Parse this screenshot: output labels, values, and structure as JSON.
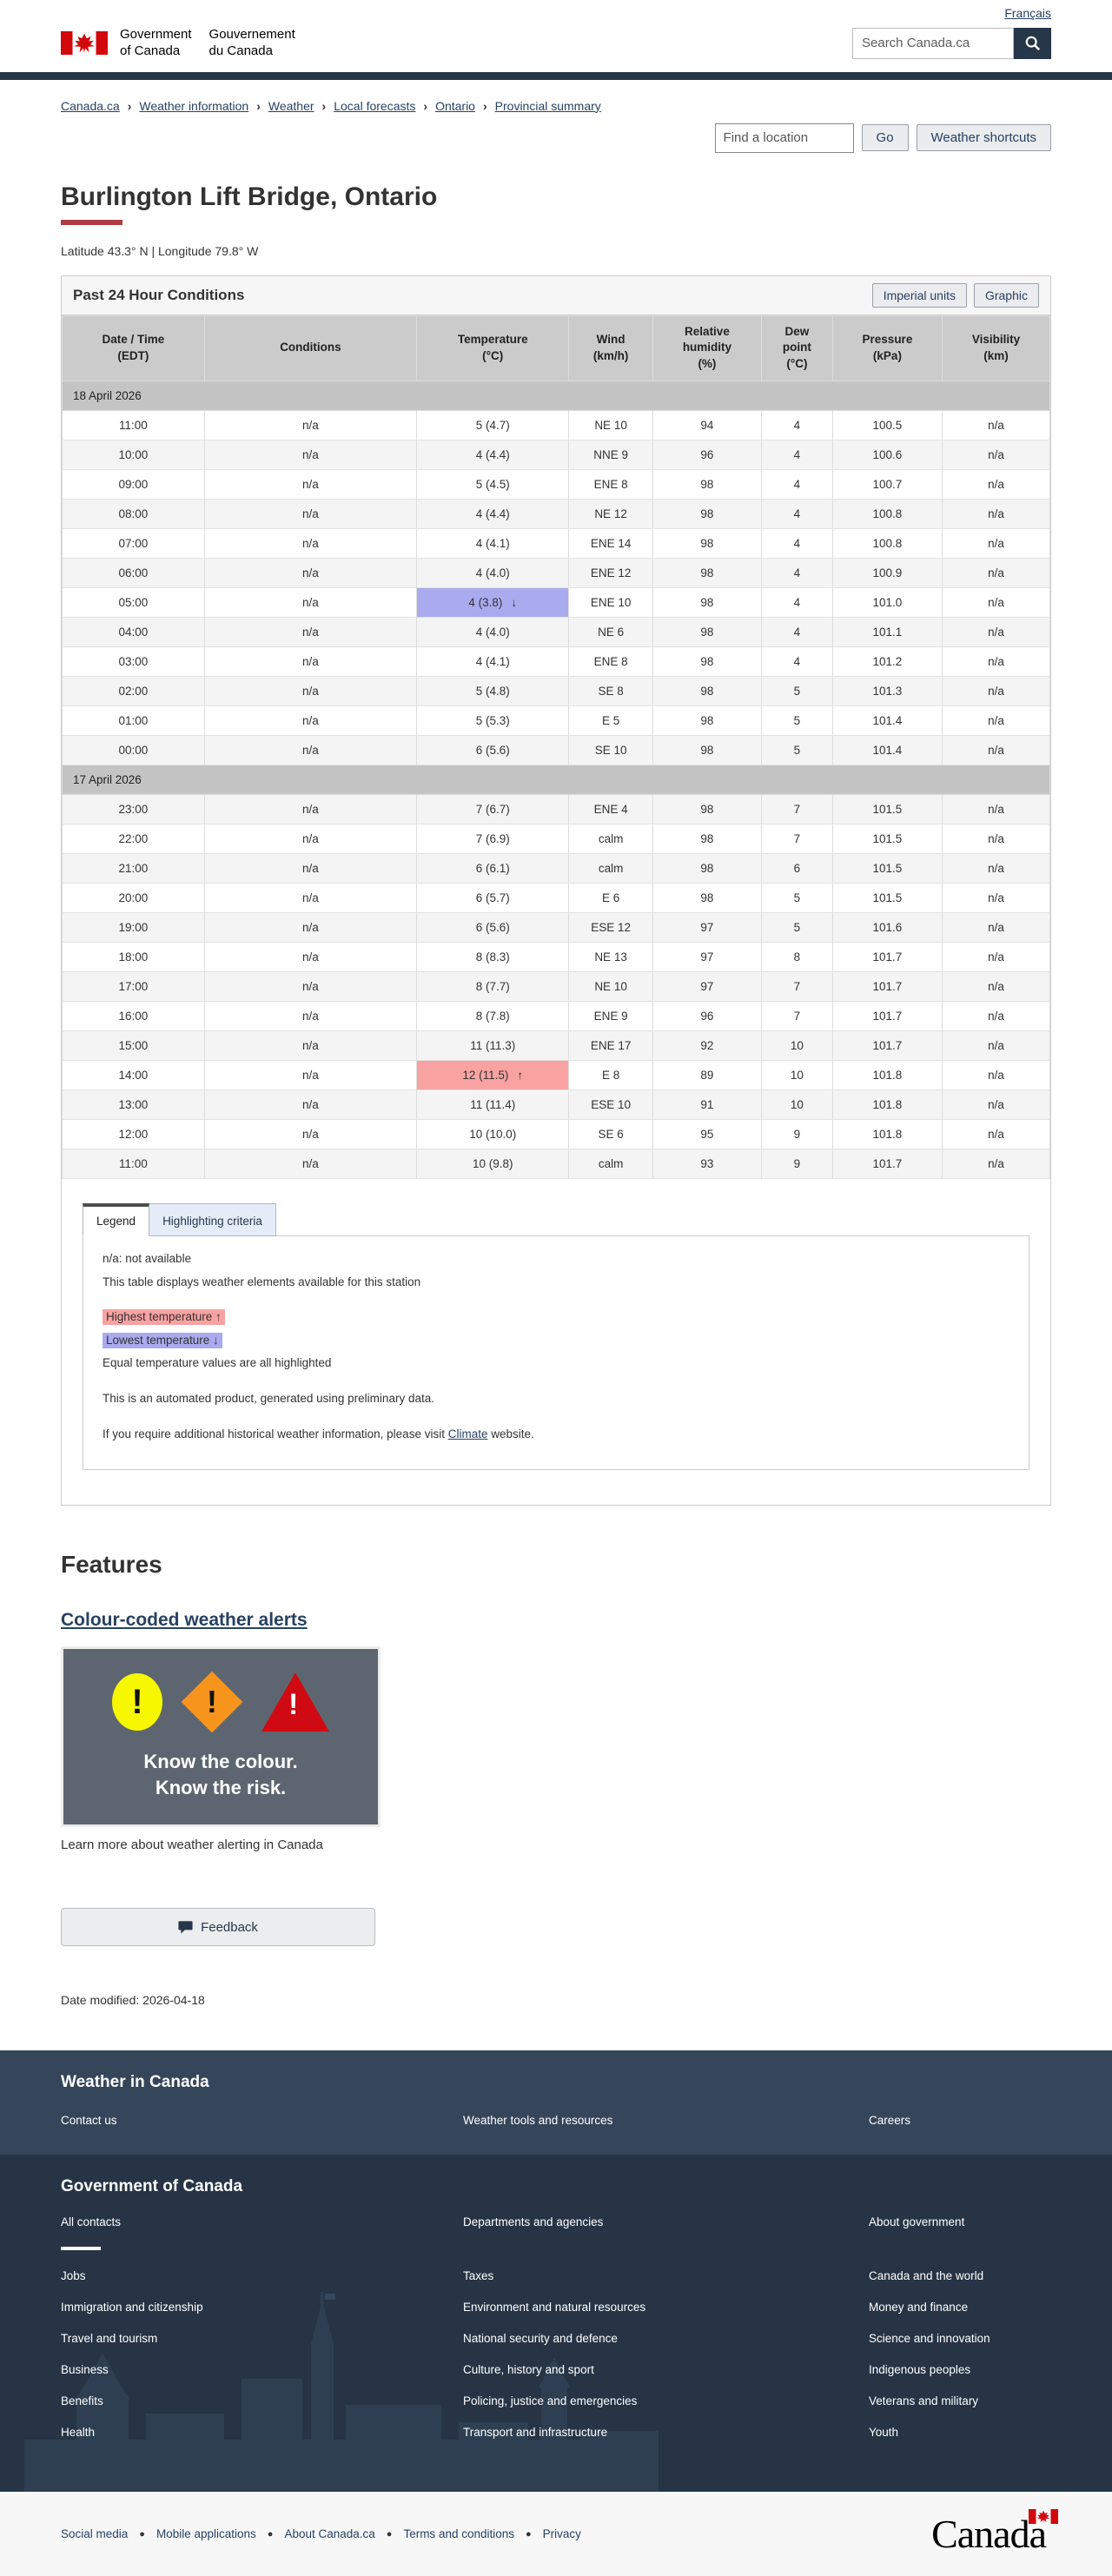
{
  "colors": {
    "navy": "#26374a",
    "link_blue": "#284162",
    "accent_red": "#af3c43",
    "highlight_highest": "#f8a2a2",
    "highlight_lowest": "#aaaaee",
    "footer_band1": "#35455a",
    "footer_band2": "#263445",
    "flag_red": "#d3080c"
  },
  "header": {
    "language_toggle": "Français",
    "signature_en_line1": "Government",
    "signature_en_line2": "of Canada",
    "signature_fr_line1": "Gouvernement",
    "signature_fr_line2": "du Canada",
    "search_placeholder": "Search Canada.ca"
  },
  "breadcrumb": [
    "Canada.ca",
    "Weather information",
    "Weather",
    "Local forecasts",
    "Ontario",
    "Provincial summary"
  ],
  "location_bar": {
    "find_placeholder": "Find a location",
    "go_label": "Go",
    "shortcuts_label": "Weather shortcuts"
  },
  "page": {
    "title": "Burlington Lift Bridge, Ontario",
    "coordinates": "Latitude 43.3° N | Longitude 79.8° W"
  },
  "panel": {
    "title": "Past 24 Hour Conditions",
    "imperial_button": "Imperial units",
    "graphic_button": "Graphic",
    "table": {
      "columns": [
        {
          "key": "time",
          "lines": [
            "Date / Time",
            "(EDT)"
          ]
        },
        {
          "key": "conditions",
          "lines": [
            "Conditions"
          ]
        },
        {
          "key": "temp",
          "lines": [
            "Temperature",
            "(°C)"
          ]
        },
        {
          "key": "wind",
          "lines": [
            "Wind",
            "(km/h)"
          ]
        },
        {
          "key": "rh",
          "lines": [
            "Relative",
            "humidity",
            "(%)"
          ]
        },
        {
          "key": "dew",
          "lines": [
            "Dew",
            "point",
            "(°C)"
          ]
        },
        {
          "key": "pressure",
          "lines": [
            "Pressure",
            "(kPa)"
          ]
        },
        {
          "key": "vis",
          "lines": [
            "Visibility",
            "(km)"
          ]
        }
      ],
      "groups": [
        {
          "date": "18 April 2026",
          "rows": [
            {
              "time": "11:00",
              "conditions": "n/a",
              "temp": "5  (4.7)",
              "wind": "NE 10",
              "rh": "94",
              "dew": "4",
              "pressure": "100.5",
              "vis": "n/a"
            },
            {
              "time": "10:00",
              "conditions": "n/a",
              "temp": "4  (4.4)",
              "wind": "NNE 9",
              "rh": "96",
              "dew": "4",
              "pressure": "100.6",
              "vis": "n/a"
            },
            {
              "time": "09:00",
              "conditions": "n/a",
              "temp": "5  (4.5)",
              "wind": "ENE 8",
              "rh": "98",
              "dew": "4",
              "pressure": "100.7",
              "vis": "n/a"
            },
            {
              "time": "08:00",
              "conditions": "n/a",
              "temp": "4  (4.4)",
              "wind": "NE 12",
              "rh": "98",
              "dew": "4",
              "pressure": "100.8",
              "vis": "n/a"
            },
            {
              "time": "07:00",
              "conditions": "n/a",
              "temp": "4  (4.1)",
              "wind": "ENE 14",
              "rh": "98",
              "dew": "4",
              "pressure": "100.8",
              "vis": "n/a"
            },
            {
              "time": "06:00",
              "conditions": "n/a",
              "temp": "4  (4.0)",
              "wind": "ENE 12",
              "rh": "98",
              "dew": "4",
              "pressure": "100.9",
              "vis": "n/a"
            },
            {
              "time": "05:00",
              "conditions": "n/a",
              "temp": "4  (3.8)",
              "arrow": "↓",
              "highlight": "lowest",
              "wind": "ENE 10",
              "rh": "98",
              "dew": "4",
              "pressure": "101.0",
              "vis": "n/a"
            },
            {
              "time": "04:00",
              "conditions": "n/a",
              "temp": "4  (4.0)",
              "wind": "NE 6",
              "rh": "98",
              "dew": "4",
              "pressure": "101.1",
              "vis": "n/a"
            },
            {
              "time": "03:00",
              "conditions": "n/a",
              "temp": "4  (4.1)",
              "wind": "ENE 8",
              "rh": "98",
              "dew": "4",
              "pressure": "101.2",
              "vis": "n/a"
            },
            {
              "time": "02:00",
              "conditions": "n/a",
              "temp": "5  (4.8)",
              "wind": "SE 8",
              "rh": "98",
              "dew": "5",
              "pressure": "101.3",
              "vis": "n/a"
            },
            {
              "time": "01:00",
              "conditions": "n/a",
              "temp": "5  (5.3)",
              "wind": "E 5",
              "rh": "98",
              "dew": "5",
              "pressure": "101.4",
              "vis": "n/a"
            },
            {
              "time": "00:00",
              "conditions": "n/a",
              "temp": "6  (5.6)",
              "wind": "SE 10",
              "rh": "98",
              "dew": "5",
              "pressure": "101.4",
              "vis": "n/a"
            }
          ]
        },
        {
          "date": "17 April 2026",
          "rows": [
            {
              "time": "23:00",
              "conditions": "n/a",
              "temp": "7  (6.7)",
              "wind": "ENE 4",
              "rh": "98",
              "dew": "7",
              "pressure": "101.5",
              "vis": "n/a"
            },
            {
              "time": "22:00",
              "conditions": "n/a",
              "temp": "7  (6.9)",
              "wind": "calm",
              "rh": "98",
              "dew": "7",
              "pressure": "101.5",
              "vis": "n/a"
            },
            {
              "time": "21:00",
              "conditions": "n/a",
              "temp": "6  (6.1)",
              "wind": "calm",
              "rh": "98",
              "dew": "6",
              "pressure": "101.5",
              "vis": "n/a"
            },
            {
              "time": "20:00",
              "conditions": "n/a",
              "temp": "6  (5.7)",
              "wind": "E 6",
              "rh": "98",
              "dew": "5",
              "pressure": "101.5",
              "vis": "n/a"
            },
            {
              "time": "19:00",
              "conditions": "n/a",
              "temp": "6  (5.6)",
              "wind": "ESE 12",
              "rh": "97",
              "dew": "5",
              "pressure": "101.6",
              "vis": "n/a"
            },
            {
              "time": "18:00",
              "conditions": "n/a",
              "temp": "8  (8.3)",
              "wind": "NE 13",
              "rh": "97",
              "dew": "8",
              "pressure": "101.7",
              "vis": "n/a"
            },
            {
              "time": "17:00",
              "conditions": "n/a",
              "temp": "8  (7.7)",
              "wind": "NE 10",
              "rh": "97",
              "dew": "7",
              "pressure": "101.7",
              "vis": "n/a"
            },
            {
              "time": "16:00",
              "conditions": "n/a",
              "temp": "8  (7.8)",
              "wind": "ENE 9",
              "rh": "96",
              "dew": "7",
              "pressure": "101.7",
              "vis": "n/a"
            },
            {
              "time": "15:00",
              "conditions": "n/a",
              "temp": "11  (11.3)",
              "wind": "ENE 17",
              "rh": "92",
              "dew": "10",
              "pressure": "101.7",
              "vis": "n/a"
            },
            {
              "time": "14:00",
              "conditions": "n/a",
              "temp": "12  (11.5)",
              "arrow": "↑",
              "highlight": "highest",
              "wind": "E 8",
              "rh": "89",
              "dew": "10",
              "pressure": "101.8",
              "vis": "n/a"
            },
            {
              "time": "13:00",
              "conditions": "n/a",
              "temp": "11  (11.4)",
              "wind": "ESE 10",
              "rh": "91",
              "dew": "10",
              "pressure": "101.8",
              "vis": "n/a"
            },
            {
              "time": "12:00",
              "conditions": "n/a",
              "temp": "10  (10.0)",
              "wind": "SE 6",
              "rh": "95",
              "dew": "9",
              "pressure": "101.8",
              "vis": "n/a"
            },
            {
              "time": "11:00",
              "conditions": "n/a",
              "temp": "10  (9.8)",
              "wind": "calm",
              "rh": "93",
              "dew": "9",
              "pressure": "101.7",
              "vis": "n/a"
            }
          ]
        }
      ]
    }
  },
  "legend": {
    "tab_legend": "Legend",
    "tab_criteria": "Highlighting criteria",
    "na_note": "n/a: not available",
    "table_note": "This table displays weather elements available for this station",
    "highest_label": "Highest temperature ↑",
    "lowest_label": "Lowest temperature ↓",
    "equal_note": "Equal temperature values are all highlighted",
    "automated_note": "This is an automated product, generated using preliminary data.",
    "climate_pre": "If you require additional historical weather information, please visit ",
    "climate_link": "Climate",
    "climate_post": " website."
  },
  "features": {
    "heading": "Features",
    "link_label": "Colour-coded weather alerts",
    "image_line1": "Know the colour.",
    "image_line2": "Know the risk.",
    "caption": "Learn more about weather alerting in Canada"
  },
  "feedback_label": "Feedback",
  "date_modified": {
    "label": "Date modified:",
    "value": "2026-04-18"
  },
  "footer": {
    "band1": {
      "heading": "Weather in Canada",
      "links": [
        "Contact us",
        "Weather tools and resources",
        "Careers"
      ]
    },
    "band2": {
      "heading": "Government of Canada",
      "rows": [
        [
          "All contacts",
          "Departments and agencies",
          "About government"
        ],
        [
          "Jobs",
          "Taxes",
          "Canada and the world"
        ],
        [
          "Immigration and citizenship",
          "Environment and natural resources",
          "Money and finance"
        ],
        [
          "Travel and tourism",
          "National security and defence",
          "Science and innovation"
        ],
        [
          "Business",
          "Culture, history and sport",
          "Indigenous peoples"
        ],
        [
          "Benefits",
          "Policing, justice and emergencies",
          "Veterans and military"
        ],
        [
          "Health",
          "Transport and infrastructure",
          "Youth"
        ]
      ]
    },
    "bottom": {
      "links": [
        "Social media",
        "Mobile applications",
        "About Canada.ca",
        "Terms and conditions",
        "Privacy"
      ],
      "wordmark": "Canada"
    }
  }
}
